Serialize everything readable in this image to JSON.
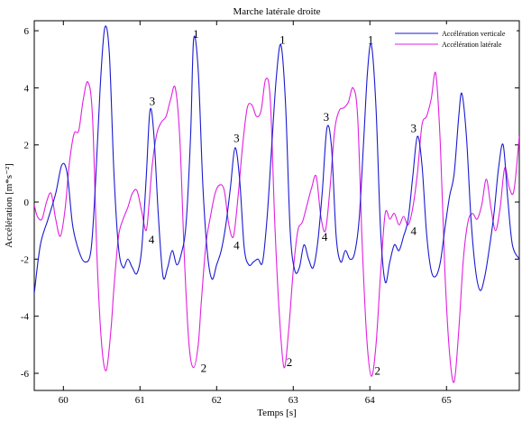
{
  "chart_data": {
    "type": "line",
    "title": "Marche latérale droite",
    "xlabel": "Temps [s]",
    "ylabel": "Accélération [m*s⁻²]",
    "xlim": [
      59.62,
      65.95
    ],
    "ylim": [
      -6.6,
      6.35
    ],
    "xticks": [
      60,
      61,
      62,
      63,
      64,
      65
    ],
    "xtick_labels": [
      "60",
      "61",
      "62",
      "63",
      "64",
      "65"
    ],
    "yticks": [
      -6,
      -4,
      -2,
      0,
      2,
      4,
      6
    ],
    "ytick_labels": [
      "-6",
      "-4",
      "-2",
      "0",
      "2",
      "4",
      "6"
    ],
    "grid": false,
    "legend_position": "top-right",
    "series": [
      {
        "name": "Accélération verticale",
        "color": "#1a1ad0",
        "x": [
          59.62,
          59.7,
          59.8,
          59.9,
          59.98,
          60.05,
          60.12,
          60.2,
          60.28,
          60.36,
          60.42,
          60.48,
          60.54,
          60.6,
          60.66,
          60.72,
          60.78,
          60.84,
          60.9,
          60.96,
          61.02,
          61.08,
          61.13,
          61.18,
          61.24,
          61.3,
          61.36,
          61.42,
          61.48,
          61.54,
          61.6,
          61.66,
          61.7,
          61.76,
          61.82,
          61.88,
          61.94,
          62.0,
          62.06,
          62.12,
          62.18,
          62.24,
          62.3,
          62.36,
          62.42,
          62.48,
          62.54,
          62.6,
          62.66,
          62.72,
          62.78,
          62.84,
          62.9,
          62.96,
          63.02,
          63.08,
          63.14,
          63.2,
          63.26,
          63.32,
          63.38,
          63.44,
          63.5,
          63.56,
          63.62,
          63.68,
          63.74,
          63.8,
          63.86,
          63.92,
          63.97,
          64.02,
          64.08,
          64.14,
          64.2,
          64.26,
          64.32,
          64.38,
          64.44,
          64.5,
          64.56,
          64.62,
          64.68,
          64.74,
          64.8,
          64.86,
          64.92,
          64.98,
          65.04,
          65.1,
          65.16,
          65.2,
          65.26,
          65.32,
          65.38,
          65.44,
          65.5,
          65.56,
          65.62,
          65.68,
          65.74,
          65.8,
          65.86,
          65.95
        ],
        "y": [
          -3.2,
          -1.5,
          -0.6,
          0.3,
          1.3,
          1.0,
          -0.8,
          -1.7,
          -2.1,
          -1.7,
          0.7,
          4.0,
          6.1,
          5.2,
          1.0,
          -1.6,
          -2.3,
          -2.0,
          -2.3,
          -2.5,
          -1.7,
          0.8,
          3.2,
          2.4,
          -0.5,
          -2.6,
          -2.3,
          -1.7,
          -2.2,
          -1.8,
          -0.8,
          2.3,
          5.7,
          4.6,
          0.6,
          -1.8,
          -2.7,
          -2.2,
          -1.7,
          -0.8,
          0.5,
          1.9,
          0.8,
          -1.6,
          -2.2,
          -2.1,
          -2.0,
          -2.1,
          -0.5,
          2.0,
          4.4,
          5.5,
          3.4,
          -1.0,
          -2.4,
          -2.3,
          -1.5,
          -2.0,
          -2.3,
          -1.4,
          0.4,
          2.6,
          1.9,
          -1.2,
          -2.1,
          -1.7,
          -2.0,
          -1.8,
          -0.6,
          2.2,
          4.6,
          5.5,
          3.3,
          -1.0,
          -2.8,
          -2.1,
          -1.5,
          -1.7,
          -1.2,
          -0.6,
          0.9,
          2.3,
          1.3,
          -1.1,
          -2.4,
          -2.6,
          -2.1,
          -0.9,
          0.2,
          1.0,
          3.0,
          3.8,
          2.3,
          -0.6,
          -2.4,
          -3.1,
          -2.6,
          -1.6,
          -0.4,
          1.2,
          2.0,
          0.1,
          -1.5,
          -2.0
        ]
      },
      {
        "name": "Accélération latérale",
        "color": "#e020e0",
        "x": [
          59.62,
          59.66,
          59.72,
          59.78,
          59.84,
          59.9,
          59.96,
          60.02,
          60.08,
          60.14,
          60.2,
          60.26,
          60.32,
          60.38,
          60.44,
          60.5,
          60.56,
          60.62,
          60.66,
          60.72,
          60.78,
          60.84,
          60.9,
          60.96,
          61.02,
          61.08,
          61.12,
          61.16,
          61.22,
          61.28,
          61.34,
          61.4,
          61.46,
          61.52,
          61.58,
          61.64,
          61.7,
          61.76,
          61.8,
          61.86,
          61.92,
          61.98,
          62.04,
          62.1,
          62.16,
          62.22,
          62.28,
          62.34,
          62.4,
          62.46,
          62.52,
          62.58,
          62.64,
          62.7,
          62.76,
          62.82,
          62.88,
          62.94,
          63.0,
          63.06,
          63.12,
          63.18,
          63.24,
          63.3,
          63.36,
          63.42,
          63.48,
          63.54,
          63.6,
          63.66,
          63.72,
          63.78,
          63.84,
          63.9,
          63.96,
          64.02,
          64.08,
          64.14,
          64.2,
          64.26,
          64.32,
          64.38,
          64.44,
          64.5,
          64.56,
          64.62,
          64.68,
          64.74,
          64.8,
          64.86,
          64.92,
          64.98,
          65.04,
          65.1,
          65.16,
          65.22,
          65.28,
          65.34,
          65.4,
          65.46,
          65.52,
          65.58,
          65.64,
          65.7,
          65.76,
          65.82,
          65.88,
          65.95
        ],
        "y": [
          -0.1,
          -0.5,
          -0.6,
          0.0,
          0.3,
          -0.6,
          -1.2,
          -0.3,
          1.4,
          2.4,
          2.5,
          3.6,
          4.2,
          3.0,
          -2.0,
          -5.0,
          -5.9,
          -4.5,
          -3.0,
          -1.2,
          -0.6,
          -0.2,
          0.3,
          0.4,
          -0.3,
          -1.0,
          0.0,
          1.3,
          2.4,
          2.8,
          3.0,
          3.6,
          4.0,
          2.2,
          -2.0,
          -5.0,
          -5.8,
          -5.0,
          -3.5,
          -1.5,
          -0.5,
          0.3,
          0.6,
          0.4,
          -0.8,
          -1.2,
          0.2,
          2.0,
          3.3,
          3.4,
          3.0,
          3.2,
          4.3,
          3.6,
          -0.8,
          -4.0,
          -5.8,
          -4.5,
          -2.4,
          -1.0,
          -0.7,
          -0.1,
          0.5,
          0.9,
          -0.5,
          -1.0,
          0.5,
          2.5,
          3.2,
          3.3,
          3.5,
          4.0,
          3.0,
          -1.5,
          -4.8,
          -6.1,
          -5.0,
          -2.5,
          -0.4,
          -0.6,
          -0.4,
          -0.8,
          -0.5,
          -0.8,
          -0.2,
          1.0,
          2.7,
          3.0,
          3.6,
          4.5,
          2.0,
          -2.5,
          -5.3,
          -6.3,
          -4.5,
          -2.0,
          -0.7,
          -0.4,
          -0.6,
          -0.1,
          0.8,
          -0.2,
          -1.0,
          -0.2,
          1.2,
          0.5,
          0.4,
          2.3
        ]
      }
    ],
    "annotations": [
      {
        "text": "1",
        "x": 61.73,
        "y": 5.75
      },
      {
        "text": "1",
        "x": 62.86,
        "y": 5.55
      },
      {
        "text": "1",
        "x": 64.01,
        "y": 5.55
      },
      {
        "text": "2",
        "x": 61.83,
        "y": -5.95
      },
      {
        "text": "2",
        "x": 62.95,
        "y": -5.75
      },
      {
        "text": "2",
        "x": 64.1,
        "y": -6.05
      },
      {
        "text": "3",
        "x": 61.16,
        "y": 3.4
      },
      {
        "text": "3",
        "x": 62.26,
        "y": 2.1
      },
      {
        "text": "3",
        "x": 63.43,
        "y": 2.85
      },
      {
        "text": "3",
        "x": 64.57,
        "y": 2.45
      },
      {
        "text": "4",
        "x": 61.15,
        "y": -1.45
      },
      {
        "text": "4",
        "x": 62.26,
        "y": -1.65
      },
      {
        "text": "4",
        "x": 63.41,
        "y": -1.35
      },
      {
        "text": "4",
        "x": 64.57,
        "y": -1.15
      }
    ]
  }
}
